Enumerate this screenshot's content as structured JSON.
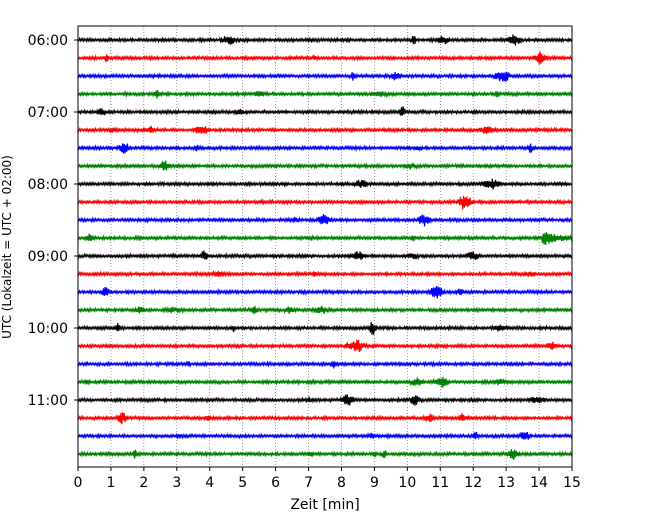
{
  "chart_data": {
    "type": "line",
    "title": "",
    "xlabel": "Zeit  [min]",
    "ylabel": "UTC (Lokalzeit = UTC + 02:00)",
    "xlim": [
      0,
      15
    ],
    "x_ticks": [
      0,
      1,
      2,
      3,
      4,
      5,
      6,
      7,
      8,
      9,
      10,
      11,
      12,
      13,
      14,
      15
    ],
    "y_ticks": [
      "06:00",
      "07:00",
      "08:00",
      "09:00",
      "10:00",
      "11:00"
    ],
    "trace_start": "06:00",
    "trace_end": "11:45",
    "trace_interval_min": 15,
    "color_cycle": [
      "#000000",
      "#ff0000",
      "#0000ff",
      "#008000"
    ],
    "grid": "vertical-dotted",
    "notable_events": [
      {
        "trace": "08:45",
        "minute": 14.2,
        "note": "large burst"
      }
    ]
  }
}
